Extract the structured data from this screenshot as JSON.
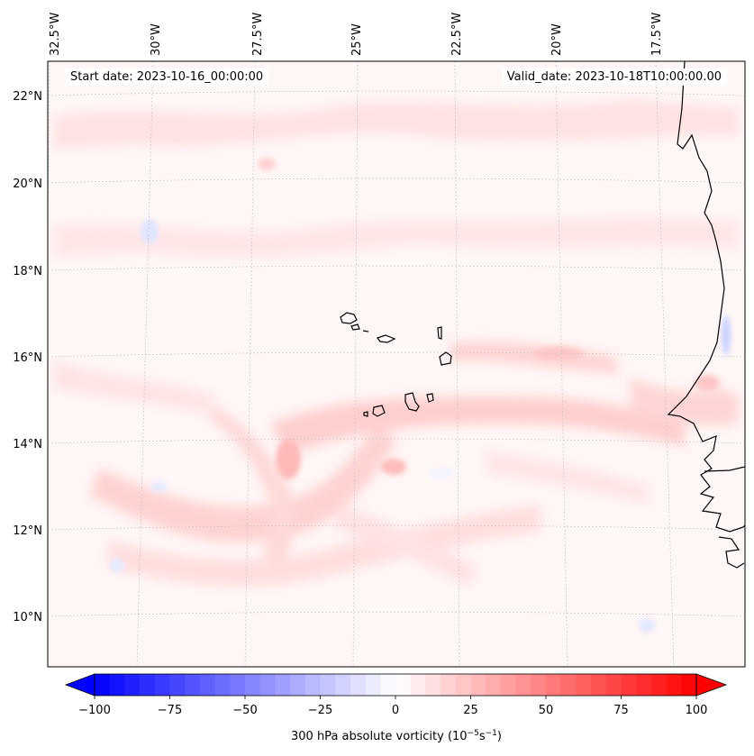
{
  "header": {
    "start_label": "Start date:",
    "start_value": "2023-10-16_00:00:00",
    "valid_label": "Valid_date:",
    "valid_value": "2023-10-18T10:00:00.00"
  },
  "longitude_labels": [
    "32.5°W",
    "30°W",
    "27.5°W",
    "25°W",
    "22.5°W",
    "20°W",
    "17.5°W"
  ],
  "latitude_labels": [
    "22°N",
    "20°N",
    "18°N",
    "16°N",
    "14°N",
    "12°N",
    "10°N"
  ],
  "colorbar": {
    "label_prefix": "300 hPa absolute vorticity (10",
    "label_exp1": "−5",
    "label_mid": "s",
    "label_exp2": "−1",
    "label_suffix": ")",
    "min": -100,
    "max": 100,
    "ticks": [
      "−100",
      "−75",
      "−50",
      "−25",
      "0",
      "25",
      "50",
      "75",
      "100"
    ],
    "color_low": "#0000ff",
    "color_mid": "#ffffff",
    "color_high": "#ff0000"
  }
}
